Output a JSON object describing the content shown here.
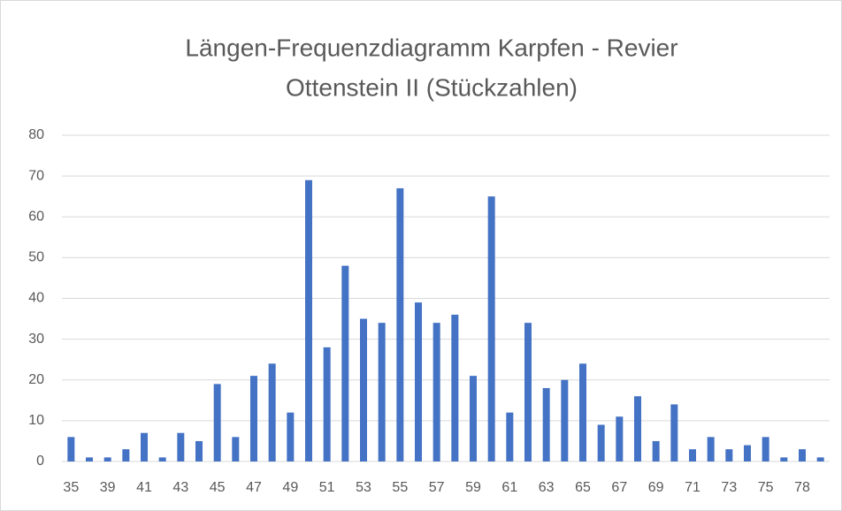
{
  "chart_data": {
    "type": "bar",
    "title": [
      "Längen-Frequenzdiagramm  Karpfen - Revier",
      "Ottenstein II (Stückzahlen)"
    ],
    "categories": [
      "35",
      null,
      "39",
      null,
      "41",
      null,
      "43",
      null,
      "45",
      null,
      "47",
      null,
      "49",
      null,
      "51",
      null,
      "53",
      null,
      "55",
      null,
      "57",
      null,
      "59",
      null,
      "61",
      null,
      "63",
      null,
      "65",
      null,
      "67",
      null,
      "69",
      null,
      "71",
      null,
      "73",
      null,
      "75",
      null,
      "78",
      null
    ],
    "values": [
      6,
      1,
      1,
      3,
      7,
      1,
      7,
      5,
      19,
      6,
      21,
      24,
      12,
      69,
      28,
      48,
      35,
      34,
      67,
      39,
      34,
      36,
      21,
      65,
      12,
      34,
      18,
      20,
      24,
      9,
      11,
      16,
      5,
      14,
      3,
      6,
      3,
      4,
      6,
      1,
      3,
      1
    ],
    "color": "#4472c4",
    "ylim": [
      0,
      80
    ],
    "yticks": [
      0,
      10,
      20,
      30,
      40,
      50,
      60,
      70,
      80
    ],
    "grid": true
  }
}
